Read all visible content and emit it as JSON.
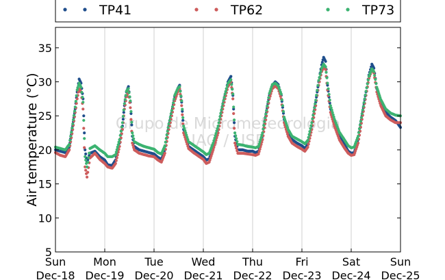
{
  "chart_data": {
    "type": "scatter",
    "ylabel": "Air temperature (°C)",
    "xlabel": "",
    "ylim": [
      5,
      38
    ],
    "y_ticks": [
      5,
      10,
      15,
      20,
      25,
      30,
      35
    ],
    "x_ticks": [
      {
        "day": "Sun",
        "date": "Dec-18"
      },
      {
        "day": "Mon",
        "date": "Dec-19"
      },
      {
        "day": "Tue",
        "date": "Dec-20"
      },
      {
        "day": "Wed",
        "date": "Dec-21"
      },
      {
        "day": "Thu",
        "date": "Dec-22"
      },
      {
        "day": "Fri",
        "date": "Dec-23"
      },
      {
        "day": "Sat",
        "date": "Dec-24"
      },
      {
        "day": "Sun",
        "date": "Dec-25"
      }
    ],
    "xlim_days": [
      0,
      7
    ],
    "grid": "vertical",
    "legend_position": "top",
    "watermark": [
      "Grupo de Micrometeorologia",
      "IAG / USP"
    ],
    "series": [
      {
        "name": "TP41",
        "color": "#1f4e8c",
        "points": [
          [
            0.0,
            20.0
          ],
          [
            0.1,
            19.8
          ],
          [
            0.2,
            19.6
          ],
          [
            0.28,
            20.4
          ],
          [
            0.35,
            23.5
          ],
          [
            0.4,
            26.0
          ],
          [
            0.44,
            28.5
          ],
          [
            0.48,
            30.4
          ],
          [
            0.52,
            29.8
          ],
          [
            0.56,
            27.5
          ],
          [
            0.6,
            20.0
          ],
          [
            0.64,
            18.2
          ],
          [
            0.7,
            19.5
          ],
          [
            0.8,
            19.8
          ],
          [
            0.9,
            19.0
          ],
          [
            1.0,
            18.5
          ],
          [
            1.06,
            17.8
          ],
          [
            1.15,
            17.7
          ],
          [
            1.22,
            18.5
          ],
          [
            1.3,
            21.0
          ],
          [
            1.36,
            23.5
          ],
          [
            1.4,
            26.5
          ],
          [
            1.44,
            28.5
          ],
          [
            1.48,
            29.3
          ],
          [
            1.52,
            27.0
          ],
          [
            1.56,
            22.0
          ],
          [
            1.6,
            20.5
          ],
          [
            1.7,
            20.0
          ],
          [
            1.8,
            19.8
          ],
          [
            1.9,
            19.6
          ],
          [
            2.0,
            19.4
          ],
          [
            2.08,
            18.9
          ],
          [
            2.15,
            18.6
          ],
          [
            2.22,
            20.0
          ],
          [
            2.3,
            23.5
          ],
          [
            2.36,
            25.5
          ],
          [
            2.42,
            27.8
          ],
          [
            2.48,
            29.0
          ],
          [
            2.52,
            29.5
          ],
          [
            2.56,
            27.0
          ],
          [
            2.6,
            23.0
          ],
          [
            2.7,
            20.5
          ],
          [
            2.8,
            20.0
          ],
          [
            2.9,
            19.5
          ],
          [
            3.0,
            19.0
          ],
          [
            3.06,
            18.5
          ],
          [
            3.12,
            18.7
          ],
          [
            3.2,
            20.5
          ],
          [
            3.3,
            23.0
          ],
          [
            3.38,
            26.0
          ],
          [
            3.44,
            28.0
          ],
          [
            3.5,
            30.0
          ],
          [
            3.56,
            30.8
          ],
          [
            3.6,
            28.0
          ],
          [
            3.64,
            22.0
          ],
          [
            3.7,
            20.0
          ],
          [
            3.8,
            20.0
          ],
          [
            3.9,
            19.8
          ],
          [
            4.0,
            19.8
          ],
          [
            4.06,
            19.6
          ],
          [
            4.12,
            19.8
          ],
          [
            4.2,
            22.0
          ],
          [
            4.28,
            25.5
          ],
          [
            4.34,
            28.0
          ],
          [
            4.4,
            29.5
          ],
          [
            4.46,
            30.0
          ],
          [
            4.52,
            29.6
          ],
          [
            4.58,
            28.0
          ],
          [
            4.64,
            24.5
          ],
          [
            4.72,
            22.5
          ],
          [
            4.8,
            21.5
          ],
          [
            4.9,
            21.0
          ],
          [
            5.0,
            20.6
          ],
          [
            5.06,
            20.2
          ],
          [
            5.12,
            20.8
          ],
          [
            5.2,
            23.5
          ],
          [
            5.28,
            27.0
          ],
          [
            5.34,
            30.0
          ],
          [
            5.4,
            32.5
          ],
          [
            5.44,
            33.6
          ],
          [
            5.48,
            33.0
          ],
          [
            5.52,
            29.5
          ],
          [
            5.58,
            26.0
          ],
          [
            5.66,
            24.0
          ],
          [
            5.76,
            22.0
          ],
          [
            5.86,
            20.8
          ],
          [
            5.94,
            19.8
          ],
          [
            6.0,
            19.5
          ],
          [
            6.06,
            19.6
          ],
          [
            6.14,
            21.5
          ],
          [
            6.22,
            25.0
          ],
          [
            6.3,
            28.5
          ],
          [
            6.36,
            31.0
          ],
          [
            6.42,
            32.6
          ],
          [
            6.46,
            32.0
          ],
          [
            6.52,
            29.0
          ],
          [
            6.6,
            27.0
          ],
          [
            6.7,
            25.5
          ],
          [
            6.8,
            24.8
          ],
          [
            6.9,
            24.3
          ],
          [
            7.0,
            23.3
          ]
        ]
      },
      {
        "name": "TP62",
        "color": "#cd5c5c",
        "points": [
          [
            0.0,
            19.6
          ],
          [
            0.1,
            19.2
          ],
          [
            0.2,
            19.0
          ],
          [
            0.28,
            20.0
          ],
          [
            0.35,
            23.0
          ],
          [
            0.4,
            25.5
          ],
          [
            0.44,
            27.5
          ],
          [
            0.48,
            29.0
          ],
          [
            0.52,
            28.5
          ],
          [
            0.56,
            26.0
          ],
          [
            0.6,
            17.5
          ],
          [
            0.64,
            16.0
          ],
          [
            0.7,
            18.8
          ],
          [
            0.8,
            19.5
          ],
          [
            0.9,
            18.6
          ],
          [
            1.0,
            18.0
          ],
          [
            1.06,
            17.5
          ],
          [
            1.15,
            17.3
          ],
          [
            1.22,
            18.0
          ],
          [
            1.3,
            20.5
          ],
          [
            1.36,
            23.0
          ],
          [
            1.4,
            26.0
          ],
          [
            1.44,
            27.8
          ],
          [
            1.48,
            28.5
          ],
          [
            1.52,
            26.2
          ],
          [
            1.56,
            21.0
          ],
          [
            1.6,
            20.0
          ],
          [
            1.7,
            19.5
          ],
          [
            1.8,
            19.3
          ],
          [
            1.9,
            19.1
          ],
          [
            2.0,
            19.0
          ],
          [
            2.08,
            18.5
          ],
          [
            2.15,
            18.2
          ],
          [
            2.22,
            19.5
          ],
          [
            2.3,
            23.0
          ],
          [
            2.36,
            25.0
          ],
          [
            2.42,
            27.2
          ],
          [
            2.48,
            28.5
          ],
          [
            2.52,
            29.0
          ],
          [
            2.56,
            26.5
          ],
          [
            2.6,
            22.5
          ],
          [
            2.7,
            20.2
          ],
          [
            2.8,
            19.6
          ],
          [
            2.9,
            19.1
          ],
          [
            3.0,
            18.6
          ],
          [
            3.06,
            18.0
          ],
          [
            3.12,
            18.2
          ],
          [
            3.2,
            20.0
          ],
          [
            3.3,
            22.5
          ],
          [
            3.38,
            25.5
          ],
          [
            3.44,
            27.5
          ],
          [
            3.5,
            29.3
          ],
          [
            3.56,
            30.0
          ],
          [
            3.6,
            27.5
          ],
          [
            3.64,
            21.0
          ],
          [
            3.7,
            19.5
          ],
          [
            3.8,
            19.5
          ],
          [
            3.9,
            19.4
          ],
          [
            4.0,
            19.3
          ],
          [
            4.06,
            19.2
          ],
          [
            4.12,
            19.4
          ],
          [
            4.2,
            21.5
          ],
          [
            4.28,
            25.0
          ],
          [
            4.34,
            27.5
          ],
          [
            4.4,
            29.0
          ],
          [
            4.46,
            29.4
          ],
          [
            4.52,
            29.0
          ],
          [
            4.58,
            27.5
          ],
          [
            4.64,
            24.0
          ],
          [
            4.72,
            22.0
          ],
          [
            4.8,
            21.0
          ],
          [
            4.9,
            20.5
          ],
          [
            5.0,
            20.1
          ],
          [
            5.06,
            19.8
          ],
          [
            5.12,
            20.4
          ],
          [
            5.2,
            23.0
          ],
          [
            5.28,
            26.5
          ],
          [
            5.34,
            29.5
          ],
          [
            5.4,
            31.5
          ],
          [
            5.44,
            32.2
          ],
          [
            5.48,
            31.8
          ],
          [
            5.52,
            28.8
          ],
          [
            5.58,
            25.5
          ],
          [
            5.66,
            23.5
          ],
          [
            5.76,
            21.5
          ],
          [
            5.86,
            20.3
          ],
          [
            5.94,
            19.5
          ],
          [
            6.0,
            19.2
          ],
          [
            6.06,
            19.3
          ],
          [
            6.14,
            21.0
          ],
          [
            6.22,
            24.5
          ],
          [
            6.3,
            28.0
          ],
          [
            6.36,
            30.5
          ],
          [
            6.42,
            31.8
          ],
          [
            6.46,
            31.3
          ],
          [
            6.52,
            28.5
          ],
          [
            6.6,
            26.5
          ],
          [
            6.7,
            25.0
          ],
          [
            6.8,
            24.4
          ],
          [
            6.9,
            24.0
          ],
          [
            7.0,
            24.0
          ]
        ]
      },
      {
        "name": "TP73",
        "color": "#3cb371",
        "points": [
          [
            0.0,
            20.4
          ],
          [
            0.1,
            20.2
          ],
          [
            0.2,
            20.0
          ],
          [
            0.28,
            20.8
          ],
          [
            0.35,
            23.8
          ],
          [
            0.4,
            26.3
          ],
          [
            0.44,
            28.8
          ],
          [
            0.48,
            29.8
          ],
          [
            0.52,
            29.2
          ],
          [
            0.56,
            27.0
          ],
          [
            0.6,
            19.0
          ],
          [
            0.64,
            17.5
          ],
          [
            0.7,
            20.2
          ],
          [
            0.8,
            20.6
          ],
          [
            0.9,
            20.0
          ],
          [
            1.0,
            19.5
          ],
          [
            1.06,
            19.0
          ],
          [
            1.15,
            19.0
          ],
          [
            1.22,
            19.3
          ],
          [
            1.3,
            21.5
          ],
          [
            1.36,
            24.0
          ],
          [
            1.4,
            26.8
          ],
          [
            1.44,
            28.6
          ],
          [
            1.48,
            29.0
          ],
          [
            1.52,
            27.2
          ],
          [
            1.56,
            22.5
          ],
          [
            1.6,
            21.2
          ],
          [
            1.7,
            20.8
          ],
          [
            1.8,
            20.5
          ],
          [
            1.9,
            20.3
          ],
          [
            2.0,
            20.1
          ],
          [
            2.08,
            19.6
          ],
          [
            2.15,
            19.4
          ],
          [
            2.22,
            20.6
          ],
          [
            2.3,
            23.8
          ],
          [
            2.36,
            25.8
          ],
          [
            2.42,
            28.0
          ],
          [
            2.48,
            29.0
          ],
          [
            2.52,
            29.3
          ],
          [
            2.56,
            27.2
          ],
          [
            2.6,
            23.5
          ],
          [
            2.7,
            21.2
          ],
          [
            2.8,
            20.7
          ],
          [
            2.9,
            20.2
          ],
          [
            3.0,
            19.7
          ],
          [
            3.06,
            19.3
          ],
          [
            3.12,
            19.5
          ],
          [
            3.2,
            21.0
          ],
          [
            3.3,
            23.5
          ],
          [
            3.38,
            26.3
          ],
          [
            3.44,
            28.2
          ],
          [
            3.5,
            29.8
          ],
          [
            3.56,
            30.3
          ],
          [
            3.6,
            28.2
          ],
          [
            3.64,
            22.5
          ],
          [
            3.7,
            20.8
          ],
          [
            3.8,
            20.7
          ],
          [
            3.9,
            20.5
          ],
          [
            4.0,
            20.4
          ],
          [
            4.06,
            20.3
          ],
          [
            4.12,
            20.5
          ],
          [
            4.2,
            22.5
          ],
          [
            4.28,
            25.8
          ],
          [
            4.34,
            28.3
          ],
          [
            4.4,
            29.6
          ],
          [
            4.46,
            29.8
          ],
          [
            4.52,
            29.4
          ],
          [
            4.58,
            28.2
          ],
          [
            4.64,
            24.8
          ],
          [
            4.72,
            23.0
          ],
          [
            4.8,
            22.0
          ],
          [
            4.9,
            21.6
          ],
          [
            5.0,
            21.2
          ],
          [
            5.06,
            20.9
          ],
          [
            5.12,
            21.4
          ],
          [
            5.2,
            24.0
          ],
          [
            5.28,
            27.3
          ],
          [
            5.34,
            30.2
          ],
          [
            5.4,
            32.0
          ],
          [
            5.44,
            32.6
          ],
          [
            5.48,
            32.2
          ],
          [
            5.52,
            29.8
          ],
          [
            5.58,
            26.5
          ],
          [
            5.66,
            24.5
          ],
          [
            5.76,
            22.6
          ],
          [
            5.86,
            21.5
          ],
          [
            5.94,
            20.6
          ],
          [
            6.0,
            20.3
          ],
          [
            6.06,
            20.4
          ],
          [
            6.14,
            22.0
          ],
          [
            6.22,
            25.3
          ],
          [
            6.3,
            28.6
          ],
          [
            6.36,
            30.8
          ],
          [
            6.42,
            31.9
          ],
          [
            6.46,
            31.5
          ],
          [
            6.52,
            29.2
          ],
          [
            6.6,
            27.4
          ],
          [
            6.7,
            26.0
          ],
          [
            6.8,
            25.4
          ],
          [
            6.9,
            25.1
          ],
          [
            7.0,
            25.0
          ]
        ]
      }
    ]
  }
}
